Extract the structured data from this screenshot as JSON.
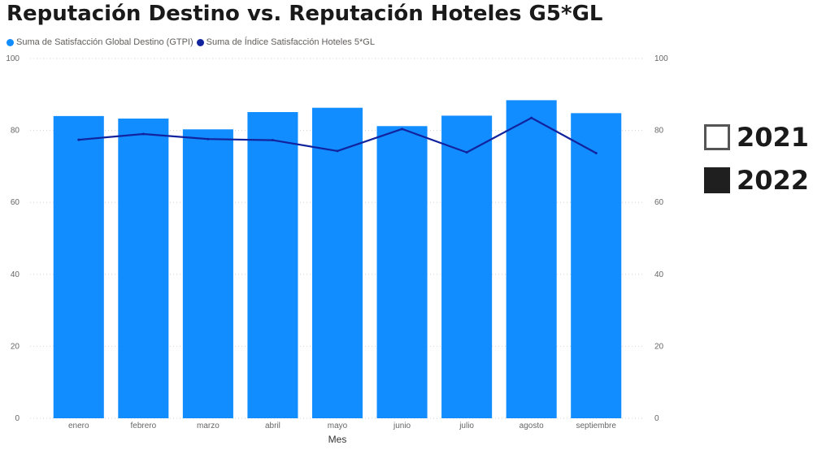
{
  "title": "Reputación Destino vs. Reputación Hoteles G5*GL",
  "chart_data": {
    "type": "bar",
    "categories": [
      "enero",
      "febrero",
      "marzo",
      "abril",
      "mayo",
      "junio",
      "julio",
      "agosto",
      "septiembre"
    ],
    "series": [
      {
        "name": "Suma de Satisfacción Global Destino (GTPI)",
        "type": "bar",
        "axis": "left",
        "color": "#118dff",
        "values": [
          84,
          83.3,
          80.3,
          85.1,
          86.3,
          81.2,
          84.1,
          88.4,
          84.8
        ]
      },
      {
        "name": "Suma de Índice Satisfacción Hoteles 5*GL",
        "type": "line",
        "axis": "right",
        "color": "#12239e",
        "values": [
          77.4,
          79,
          77.6,
          77.3,
          74.3,
          80.4,
          73.9,
          83.5,
          73.7
        ]
      }
    ],
    "xlabel": "Mes",
    "ylabel": "",
    "y2label": "",
    "ylim": [
      0,
      100
    ],
    "y2lim": [
      0,
      100
    ],
    "yticks": [
      "0",
      "20",
      "40",
      "60",
      "80",
      "100"
    ],
    "y2ticks": [
      "0",
      "20",
      "40",
      "60",
      "80",
      "100"
    ],
    "grid": true,
    "legend_position": "top-left"
  },
  "slicer": {
    "items": [
      {
        "label": "2021",
        "checked": false
      },
      {
        "label": "2022",
        "checked": true
      }
    ]
  }
}
